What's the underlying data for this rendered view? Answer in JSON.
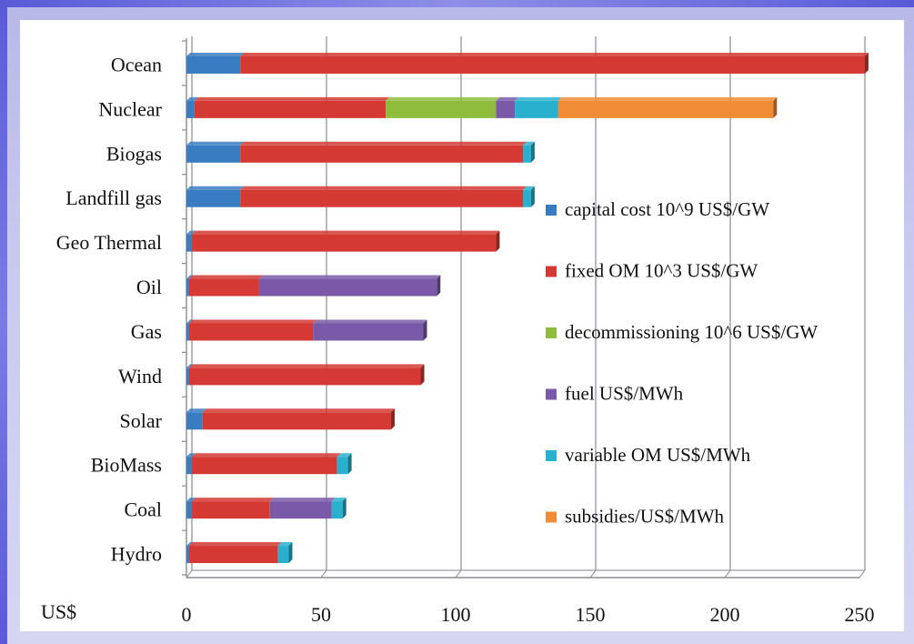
{
  "chart_data": {
    "type": "bar",
    "orientation": "horizontal",
    "stacked": true,
    "categories": [
      "Ocean",
      "Nuclear",
      "Biogas",
      "Landfill gas",
      "Geo Thermal",
      "Oil",
      "Gas",
      "Wind",
      "Solar",
      "BioMass",
      "Coal",
      "Hydro"
    ],
    "series": [
      {
        "name": "capital cost 10^9 US$/GW",
        "color": "#3a7cc2",
        "values": [
          20,
          3,
          20,
          20,
          2,
          1,
          1,
          1,
          6,
          2,
          2,
          1
        ]
      },
      {
        "name": "fixed OM 10^3 US$/GW",
        "color": "#d43a33",
        "values": [
          232,
          71,
          105,
          105,
          113,
          26,
          46,
          86,
          70,
          54,
          29,
          33
        ]
      },
      {
        "name": "decommissioning 10^6 US$/GW",
        "color": "#8fbc3c",
        "values": [
          0,
          41,
          0,
          0,
          0,
          0,
          0,
          0,
          0,
          0,
          0,
          0
        ]
      },
      {
        "name": "fuel US$/MWh",
        "color": "#7a5aa8",
        "values": [
          0,
          7,
          0,
          0,
          0,
          66,
          41,
          0,
          0,
          0,
          23,
          0
        ]
      },
      {
        "name": "variable OM US$/MWh",
        "color": "#2ab0cf",
        "values": [
          0,
          16,
          3,
          3,
          0,
          0,
          0,
          0,
          0,
          4,
          4,
          4
        ]
      },
      {
        "name": "subsidies/US$/MWh",
        "color": "#ef8c35",
        "values": [
          0,
          80,
          0,
          0,
          0,
          0,
          0,
          0,
          0,
          0,
          0,
          0
        ]
      }
    ],
    "xlabel": "US$",
    "xlim": [
      0,
      250
    ],
    "xticks": [
      "0",
      "50",
      "100",
      "150",
      "200",
      "250"
    ],
    "grid": true,
    "legend_position": "right"
  }
}
